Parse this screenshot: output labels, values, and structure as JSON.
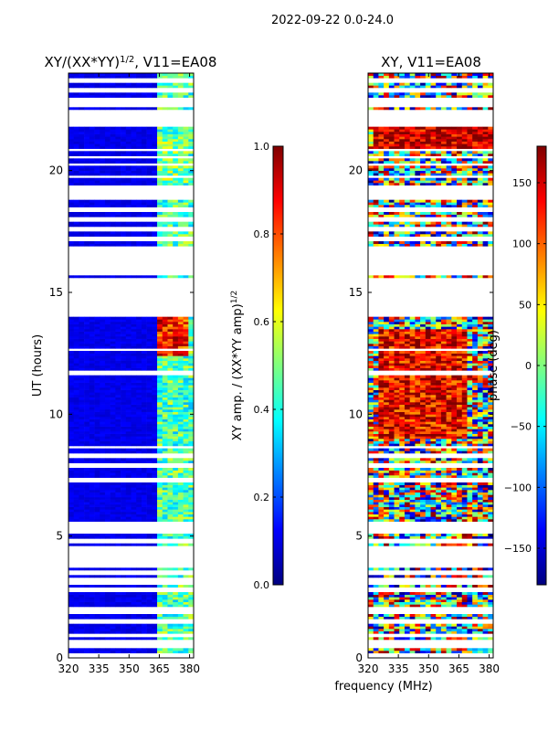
{
  "suptitle": "2022-09-22 0.0-24.0",
  "xlabel": "frequency (MHz)",
  "colors": {
    "jet": [
      "#00007f",
      "#0000ff",
      "#007fff",
      "#00ffff",
      "#7fff7f",
      "#ffff00",
      "#ff7f00",
      "#ff0000",
      "#7f0000"
    ]
  },
  "chart_data": [
    {
      "type": "heatmap",
      "title": "XY/(XX*YY)",
      "title_sup": "1/2",
      "title_suffix": ", V11=EA08",
      "xlabel": "",
      "ylabel": "UT (hours)",
      "xlim": [
        320,
        382
      ],
      "ylim": [
        0,
        24
      ],
      "x_ticks": [
        320,
        335,
        350,
        365,
        380
      ],
      "y_ticks": [
        0,
        5,
        10,
        15,
        20
      ],
      "colorbar": {
        "label": "XY amp. / (XX*YY amp)",
        "label_sup": "1/2",
        "range": [
          0.0,
          1.0
        ],
        "ticks": [
          "0.0",
          "0.2",
          "0.4",
          "0.6",
          "0.8",
          "1.0"
        ],
        "tick_values": [
          0.0,
          0.2,
          0.4,
          0.6,
          0.8,
          1.0
        ]
      },
      "data_bands": [
        [
          0.2,
          0.4
        ],
        [
          0.75,
          0.85
        ],
        [
          1.0,
          1.4
        ],
        [
          1.6,
          1.8
        ],
        [
          2.1,
          2.7
        ],
        [
          2.9,
          3.0
        ],
        [
          3.3,
          3.4
        ],
        [
          3.6,
          3.7
        ],
        [
          4.6,
          4.7
        ],
        [
          4.9,
          5.1
        ],
        [
          5.6,
          7.2
        ],
        [
          7.4,
          7.8
        ],
        [
          8.0,
          8.2
        ],
        [
          8.4,
          8.6
        ],
        [
          8.7,
          11.6
        ],
        [
          11.8,
          12.6
        ],
        [
          12.7,
          14.0
        ],
        [
          15.6,
          15.7
        ],
        [
          16.9,
          17.1
        ],
        [
          17.3,
          17.5
        ],
        [
          17.7,
          17.9
        ],
        [
          18.1,
          18.3
        ],
        [
          18.5,
          18.8
        ],
        [
          19.4,
          19.7
        ],
        [
          19.8,
          20.2
        ],
        [
          20.3,
          20.5
        ],
        [
          20.6,
          20.8
        ],
        [
          20.9,
          21.8
        ],
        [
          22.5,
          22.6
        ],
        [
          23.0,
          23.2
        ],
        [
          23.4,
          23.6
        ],
        [
          23.8,
          24.0
        ]
      ],
      "base_value": 0.08,
      "high_band": {
        "freq_range": [
          363,
          382
        ],
        "value_range": [
          0.3,
          0.6
        ]
      },
      "hot_patches": [
        {
          "freq_range": [
            363,
            380
          ],
          "time_range": [
            12.4,
            14.0
          ],
          "value": 0.85
        },
        {
          "freq_range": [
            363,
            380
          ],
          "time_range": [
            19.5,
            21.5
          ],
          "value": 0.5
        }
      ]
    },
    {
      "type": "heatmap",
      "title": "XY, V11=EA08",
      "xlabel": "",
      "ylabel": "",
      "xlim": [
        320,
        382
      ],
      "ylim": [
        0,
        24
      ],
      "x_ticks": [
        320,
        335,
        350,
        365,
        380
      ],
      "y_ticks": [
        0,
        5,
        10,
        15,
        20
      ],
      "colorbar": {
        "label": "phase (deg)",
        "range": [
          -180,
          180
        ],
        "ticks": [
          "−150",
          "−100",
          "−50",
          "0",
          "50",
          "100",
          "150"
        ],
        "tick_values": [
          -150,
          -100,
          -50,
          0,
          50,
          100,
          150
        ]
      },
      "data_bands": [
        [
          0.2,
          0.4
        ],
        [
          0.75,
          0.85
        ],
        [
          1.0,
          1.4
        ],
        [
          1.6,
          1.8
        ],
        [
          2.1,
          2.7
        ],
        [
          2.9,
          3.0
        ],
        [
          3.3,
          3.4
        ],
        [
          3.6,
          3.7
        ],
        [
          4.6,
          4.7
        ],
        [
          4.9,
          5.1
        ],
        [
          5.6,
          7.2
        ],
        [
          7.4,
          7.8
        ],
        [
          8.0,
          8.2
        ],
        [
          8.4,
          8.6
        ],
        [
          8.7,
          11.6
        ],
        [
          11.8,
          12.6
        ],
        [
          12.7,
          14.0
        ],
        [
          15.6,
          15.7
        ],
        [
          16.9,
          17.1
        ],
        [
          17.3,
          17.5
        ],
        [
          17.7,
          17.9
        ],
        [
          18.1,
          18.3
        ],
        [
          18.5,
          18.8
        ],
        [
          19.4,
          19.7
        ],
        [
          19.8,
          20.2
        ],
        [
          20.3,
          20.5
        ],
        [
          20.6,
          20.8
        ],
        [
          20.9,
          21.8
        ],
        [
          22.5,
          22.6
        ],
        [
          23.0,
          23.2
        ],
        [
          23.4,
          23.6
        ],
        [
          23.8,
          24.0
        ]
      ],
      "hot_patches": [
        {
          "freq_range": [
            325,
            370
          ],
          "time_range": [
            9.0,
            13.5
          ],
          "value": 140
        },
        {
          "freq_range": [
            322,
            382
          ],
          "time_range": [
            20.9,
            21.8
          ],
          "value": 160
        }
      ]
    }
  ]
}
